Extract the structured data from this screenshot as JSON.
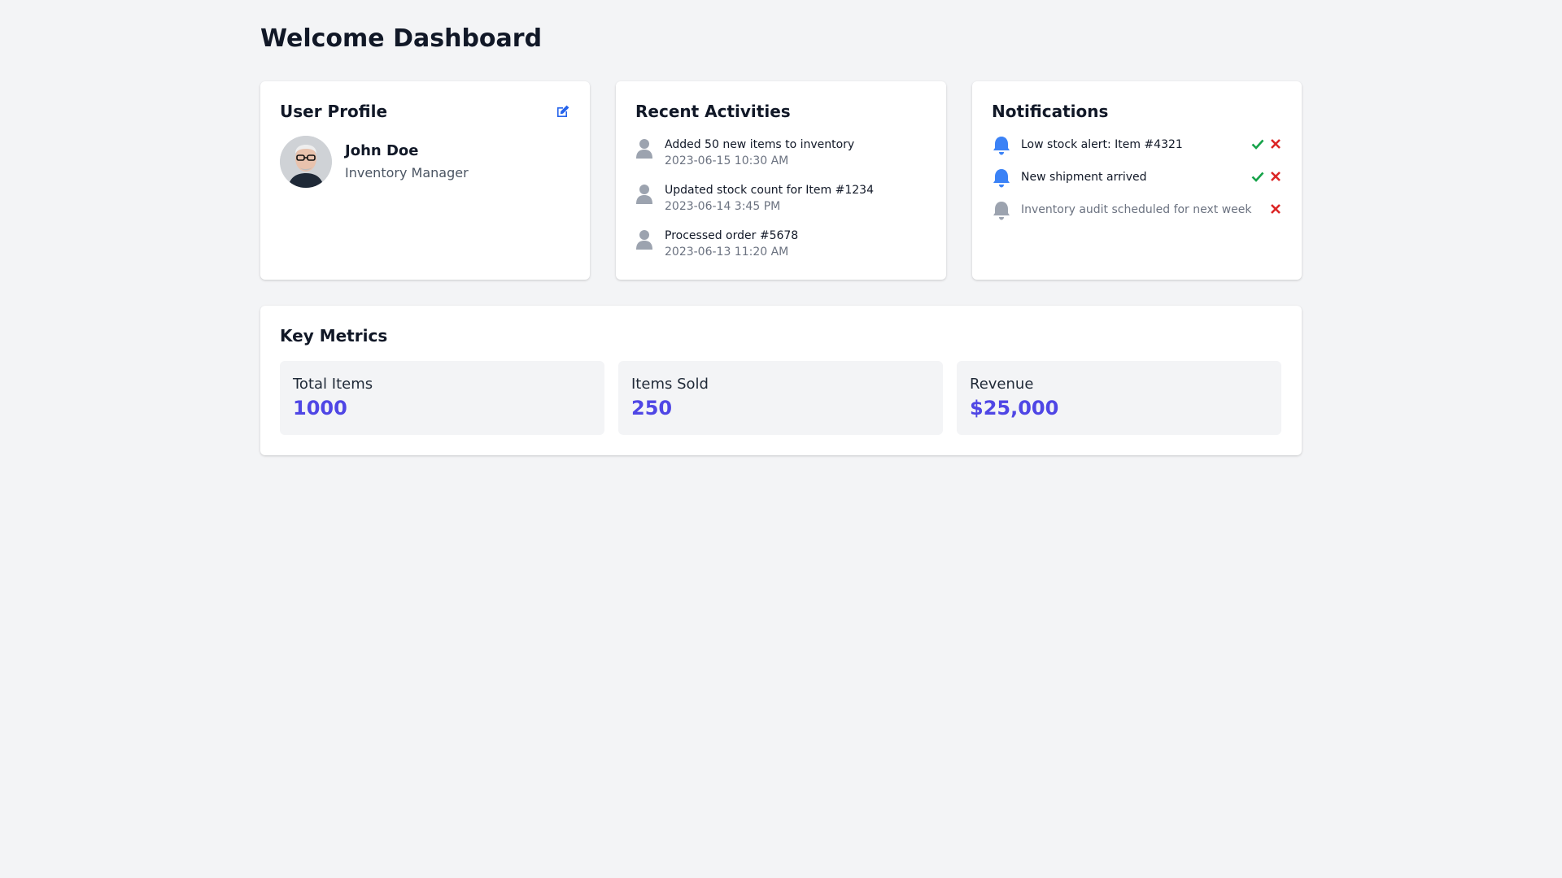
{
  "page": {
    "title": "Welcome Dashboard"
  },
  "profile": {
    "title": "User Profile",
    "edit_icon": "edit-icon",
    "name": "John Doe",
    "role": "Inventory Manager"
  },
  "activities": {
    "title": "Recent Activities",
    "icon": "user-icon",
    "items": [
      {
        "text": "Added 50 new items to inventory",
        "time": "2023-06-15 10:30 AM"
      },
      {
        "text": "Updated stock count for Item #1234",
        "time": "2023-06-14 3:45 PM"
      },
      {
        "text": "Processed order #5678",
        "time": "2023-06-13 11:20 AM"
      }
    ]
  },
  "notifications": {
    "title": "Notifications",
    "icon": "bell-icon",
    "items": [
      {
        "text": "Low stock alert: Item #4321",
        "read": false
      },
      {
        "text": "New shipment arrived",
        "read": false
      },
      {
        "text": "Inventory audit scheduled for next week",
        "read": true
      }
    ]
  },
  "metrics": {
    "title": "Key Metrics",
    "items": [
      {
        "label": "Total Items",
        "value": "1000"
      },
      {
        "label": "Items Sold",
        "value": "250"
      },
      {
        "label": "Revenue",
        "value": "$25,000"
      }
    ]
  },
  "colors": {
    "background": "#f3f4f6",
    "accent": "#4f46e5",
    "bell_unread": "#3b82f6",
    "bell_read": "#9ca3af",
    "check": "#16a34a",
    "close": "#dc2626"
  }
}
